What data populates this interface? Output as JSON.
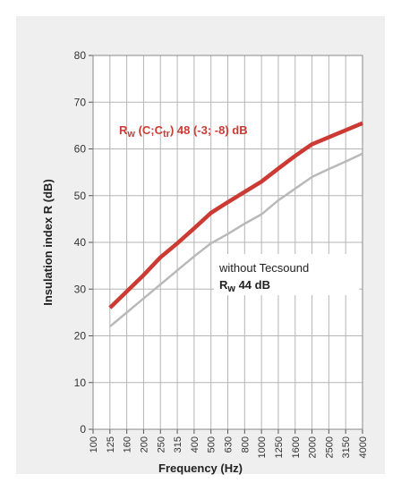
{
  "chart_data": {
    "type": "line",
    "x_label": "Frequency (Hz)",
    "y_label": "Insulation index R (dB)",
    "categories": [
      "100",
      "125",
      "160",
      "200",
      "250",
      "315",
      "400",
      "500",
      "630",
      "800",
      "1000",
      "1250",
      "1600",
      "2000",
      "2500",
      "3150",
      "4000"
    ],
    "series": [
      {
        "color": "#cc3b33",
        "width": 4.5,
        "values": [
          null,
          26,
          29.5,
          33,
          36.8,
          39.8,
          43,
          46.3,
          48.6,
          50.8,
          53,
          55.8,
          58.5,
          61,
          62.5,
          64,
          65.5
        ]
      },
      {
        "color": "#b9b9b9",
        "width": 2.5,
        "values": [
          null,
          22,
          25,
          28,
          31,
          34,
          37,
          39.8,
          41.8,
          44,
          46,
          49,
          51.5,
          54,
          55.7,
          57.3,
          59
        ]
      }
    ],
    "ylim": [
      0,
      80
    ],
    "yticks": [
      0,
      10,
      20,
      30,
      40,
      50,
      60,
      70,
      80
    ],
    "grid": true,
    "annotations": [
      {
        "color": "#cc3b33",
        "bold": true,
        "lines": [
          [
            {
              "text": "R"
            },
            {
              "text": "w",
              "sub": true
            },
            {
              "text": " (C;C"
            },
            {
              "text": "tr",
              "sub": true
            },
            {
              "text": ") 48 (-3; -8) dB"
            }
          ]
        ]
      },
      {
        "color": "#222222",
        "box": true,
        "lines": [
          [
            {
              "text": "without Tecsound"
            }
          ],
          [
            {
              "text": "R",
              "bold": true
            },
            {
              "text": "w",
              "sub": true,
              "bold": true
            },
            {
              "text": " 44 dB",
              "bold": true
            }
          ]
        ]
      }
    ]
  }
}
